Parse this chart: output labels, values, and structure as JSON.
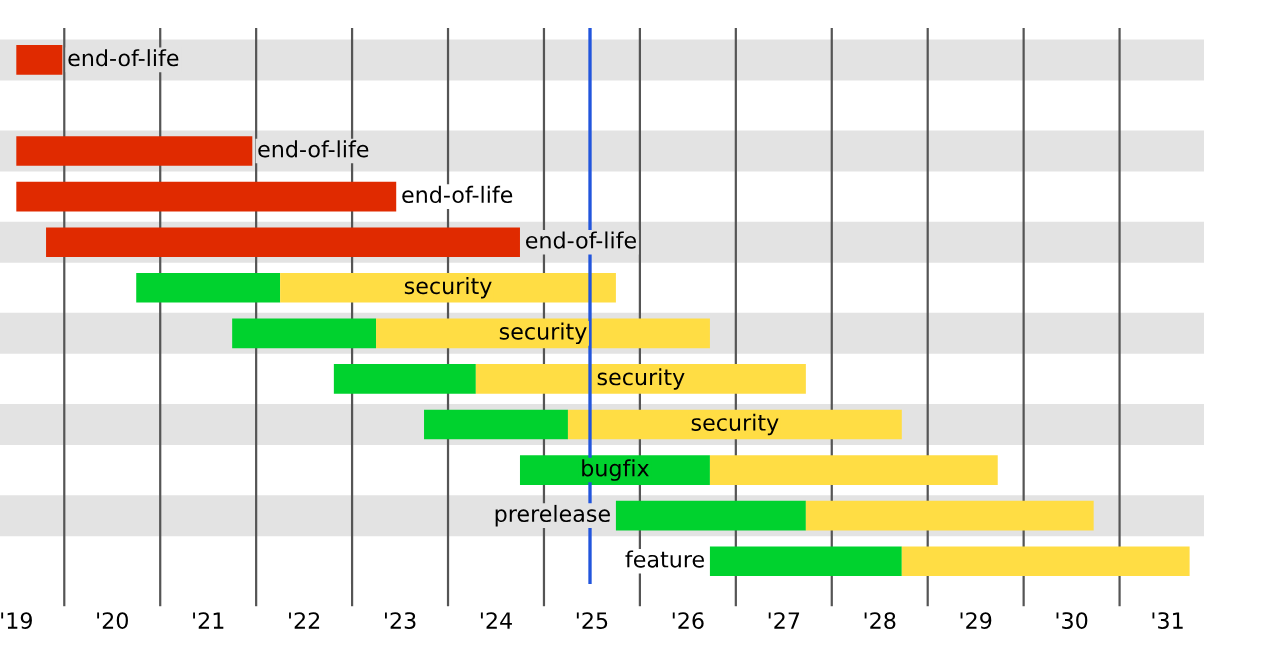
{
  "chart_data": {
    "type": "bar",
    "orientation": "horizontal",
    "categories": [
      null,
      null,
      null,
      null,
      null,
      null,
      null,
      null,
      null,
      null,
      null,
      null
    ],
    "series": [
      {
        "color": "#e02a00",
        "base": [
          2019.0,
          null,
          2019.0,
          2019.0,
          2019.31,
          null,
          null,
          null,
          null,
          null,
          null,
          null
        ],
        "values": [
          0.48,
          null,
          2.46,
          3.96,
          4.94,
          null,
          null,
          null,
          null,
          null,
          null,
          null
        ],
        "value_labels": [
          "end-of-life",
          null,
          "end-of-life",
          "end-of-life",
          "end-of-life",
          null,
          null,
          null,
          null,
          null,
          null,
          null
        ]
      },
      {
        "color": "#00d22e",
        "base": [
          null,
          null,
          null,
          null,
          null,
          2020.25,
          2021.25,
          2022.31,
          2023.25,
          2024.25,
          2025.25,
          2026.23
        ],
        "values": [
          null,
          null,
          null,
          null,
          null,
          1.5,
          1.5,
          1.48,
          1.5,
          1.98,
          1.98,
          2.0
        ],
        "value_labels": [
          null,
          null,
          null,
          null,
          null,
          null,
          null,
          null,
          null,
          "bugfix",
          "prerelease",
          "feature"
        ]
      },
      {
        "color": "#ffdd44",
        "base": [
          null,
          null,
          null,
          null,
          null,
          2021.75,
          2022.75,
          2023.79,
          2024.75,
          2026.23,
          2027.23,
          2028.23
        ],
        "values": [
          null,
          null,
          null,
          null,
          null,
          3.5,
          3.48,
          3.44,
          3.48,
          3.0,
          3.0,
          3.0
        ],
        "value_labels": [
          null,
          null,
          null,
          null,
          null,
          "security",
          "security",
          "security",
          "security",
          null,
          null,
          null
        ]
      }
    ],
    "xlim": [
      2018.83,
      2031.38
    ],
    "xticks": [
      {
        "value": 2019,
        "label": "'19"
      },
      {
        "value": 2019.5,
        "label": null
      },
      {
        "value": 2020,
        "label": "'20"
      },
      {
        "value": 2020.5,
        "label": null
      },
      {
        "value": 2021,
        "label": "'21"
      },
      {
        "value": 2021.5,
        "label": null
      },
      {
        "value": 2022,
        "label": "'22"
      },
      {
        "value": 2022.5,
        "label": null
      },
      {
        "value": 2023,
        "label": "'23"
      },
      {
        "value": 2023.5,
        "label": null
      },
      {
        "value": 2024,
        "label": "'24"
      },
      {
        "value": 2024.5,
        "label": null
      },
      {
        "value": 2025,
        "label": "'25"
      },
      {
        "value": 2025.5,
        "label": null
      },
      {
        "value": 2026,
        "label": "'26"
      },
      {
        "value": 2026.5,
        "label": null
      },
      {
        "value": 2027,
        "label": "'27"
      },
      {
        "value": 2027.5,
        "label": null
      },
      {
        "value": 2028,
        "label": "'28"
      },
      {
        "value": 2028.5,
        "label": null
      },
      {
        "value": 2029,
        "label": "'29"
      },
      {
        "value": 2029.5,
        "label": null
      },
      {
        "value": 2030,
        "label": "'30"
      },
      {
        "value": 2030.5,
        "label": null
      },
      {
        "value": 2031,
        "label": "'31"
      }
    ],
    "ref_lines": [
      {
        "axis": "x",
        "value": 2024.98,
        "color": "#2255dd"
      }
    ],
    "grid": "x",
    "tick_labels": "x"
  }
}
